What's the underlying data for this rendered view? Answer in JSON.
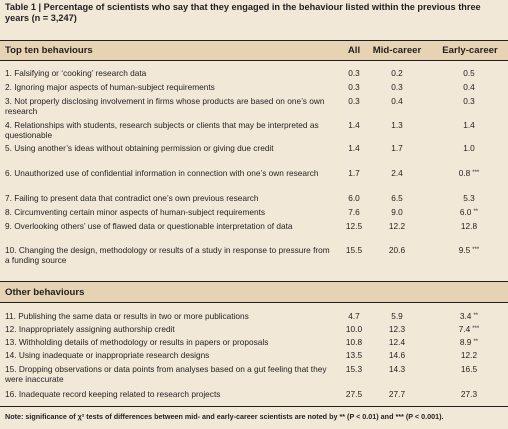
{
  "caption": "Table 1 | Percentage of scientists who say that they engaged in the behaviour listed within the previous three years (n = 3,247)",
  "columns": {
    "all": "All",
    "mid": "Mid-career",
    "early": "Early-career"
  },
  "section1_title": "Top ten behaviours",
  "section2_title": "Other behaviours",
  "top_rows": [
    {
      "label": "1. Falsifying or ‘cooking’ research data",
      "all": "0.3",
      "mid": "0.2",
      "early": "0.5",
      "sig": ""
    },
    {
      "label": "2. Ignoring major aspects of human-subject requirements",
      "all": "0.3",
      "mid": "0.3",
      "early": "0.4",
      "sig": ""
    },
    {
      "label": "3. Not properly disclosing involvement in firms whose products are based on one’s own research",
      "all": "0.3",
      "mid": "0.4",
      "early": "0.3",
      "sig": ""
    },
    {
      "label": "4. Relationships with students, research subjects or clients that may be interpreted as questionable",
      "all": "1.4",
      "mid": "1.3",
      "early": "1.4",
      "sig": ""
    },
    {
      "label": "5. Using another’s ideas without obtaining permission or giving due credit",
      "all": "1.4",
      "mid": "1.7",
      "early": "1.0",
      "sig": ""
    },
    {
      "label": "6. Unauthorized use of confidential information in connection with one’s own research",
      "all": "1.7",
      "mid": "2.4",
      "early": "0.8",
      "sig": "***"
    },
    {
      "label": "7. Failing to present data that contradict one’s own previous research",
      "all": "6.0",
      "mid": "6.5",
      "early": "5.3",
      "sig": ""
    },
    {
      "label": "8. Circumventing certain minor aspects of human-subject requirements",
      "all": "7.6",
      "mid": "9.0",
      "early": "6.0",
      "sig": "**"
    },
    {
      "label": "9. Overlooking others’ use of flawed data or questionable interpretation of data",
      "all": "12.5",
      "mid": "12.2",
      "early": "12.8",
      "sig": ""
    },
    {
      "label": "10. Changing the design, methodology or results of a study in response to pressure from a funding source",
      "all": "15.5",
      "mid": "20.6",
      "early": "9.5",
      "sig": "***"
    }
  ],
  "other_rows": [
    {
      "label": "11. Publishing the same data or results in two or more publications",
      "all": "4.7",
      "mid": "5.9",
      "early": "3.4",
      "sig": "**"
    },
    {
      "label": "12. Inappropriately assigning authorship credit",
      "all": "10.0",
      "mid": "12.3",
      "early": "7.4",
      "sig": "***"
    },
    {
      "label": "13. Withholding details of methodology or results in papers or proposals",
      "all": "10.8",
      "mid": "12.4",
      "early": "8.9",
      "sig": "**"
    },
    {
      "label": "14. Using inadequate or inappropriate research designs",
      "all": "13.5",
      "mid": "14.6",
      "early": "12.2",
      "sig": ""
    },
    {
      "label": "15. Dropping observations or data points from analyses based on a gut feeling that they were inaccurate",
      "all": "15.3",
      "mid": "14.3",
      "early": "16.5",
      "sig": ""
    },
    {
      "label": "16. Inadequate record keeping related to research projects",
      "all": "27.5",
      "mid": "27.7",
      "early": "27.3",
      "sig": ""
    }
  ],
  "note": "Note: significance of χ² tests of differences between mid- and early-career scientists are noted by ** (P < 0.01) and *** (P < 0.001)."
}
